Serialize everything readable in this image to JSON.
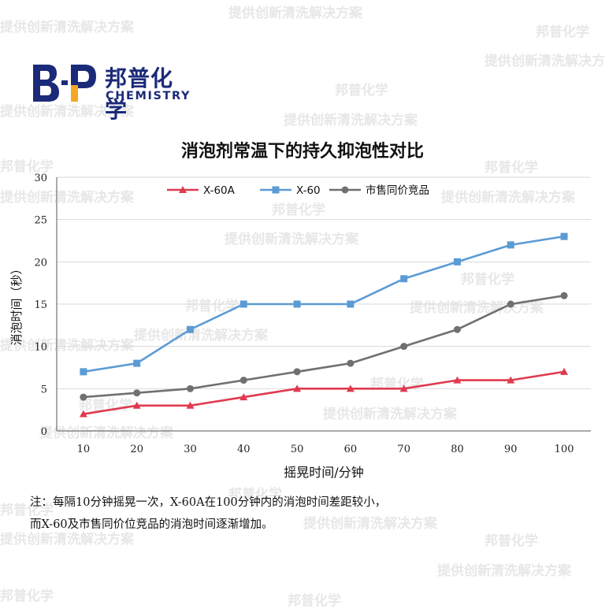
{
  "watermark": {
    "texts": [
      "提供创新清洗解决方案",
      "邦普化学"
    ]
  },
  "logo": {
    "mark": "B·P",
    "name_cn": "邦普化学",
    "name_en": "CHEMISTRY",
    "colors": {
      "navy": "#1b2a78",
      "orange": "#f5a623"
    }
  },
  "chart_data": {
    "type": "line",
    "title": "消泡剂常温下的持久抑泡性对比",
    "xlabel": "摇晃时间/分钟",
    "ylabel": "消泡时间（秒）",
    "x": [
      10,
      20,
      30,
      40,
      50,
      60,
      70,
      80,
      90,
      100
    ],
    "ylim": [
      0,
      30
    ],
    "yticks": [
      0,
      5,
      10,
      15,
      20,
      25,
      30
    ],
    "grid": true,
    "legend_position": "top",
    "series": [
      {
        "name": "X-60A",
        "color": "#e03a4f",
        "marker": "triangle",
        "values": [
          2,
          3,
          3,
          4,
          5,
          5,
          5,
          6,
          6,
          7
        ]
      },
      {
        "name": "X-60",
        "color": "#5b9bd5",
        "marker": "square",
        "values": [
          7,
          8,
          12,
          15,
          15,
          15,
          18,
          20,
          22,
          23
        ]
      },
      {
        "name": "市售同价竞品",
        "color": "#707070",
        "marker": "circle",
        "values": [
          4,
          4.5,
          5,
          6,
          7,
          8,
          10,
          12,
          15,
          16
        ]
      }
    ]
  },
  "note": {
    "line1": "注：每隔10分钟摇晃一次，X-60A在100分钟内的消泡时间差距较小，",
    "line2": "而X-60及市售同价位竞品的消泡时间逐渐增加。"
  }
}
